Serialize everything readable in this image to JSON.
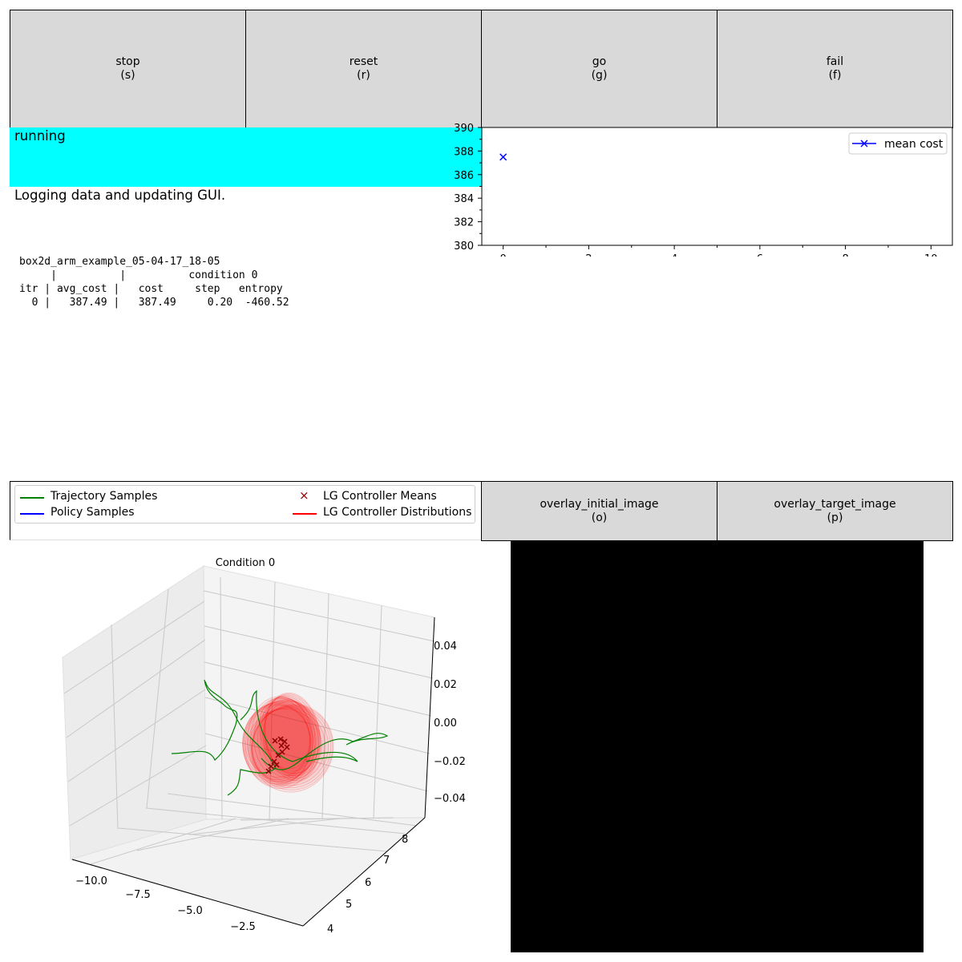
{
  "buttons": [
    {
      "label": "stop",
      "key": "(s)"
    },
    {
      "label": "reset",
      "key": "(r)"
    },
    {
      "label": "go",
      "key": "(g)"
    },
    {
      "label": "fail",
      "key": "(f)"
    }
  ],
  "image_buttons": [
    {
      "label": "overlay_initial_image",
      "key": "(o)"
    },
    {
      "label": "overlay_target_image",
      "key": "(p)"
    }
  ],
  "status": {
    "state": "running",
    "state_color": "#00ffff",
    "message": "Logging data and updating GUI."
  },
  "log": {
    "experiment": "box2d_arm_example_05-04-17_18-05",
    "header_1": "     |          |          condition 0",
    "header_2": "itr | avg_cost |   cost     step   entropy",
    "rows": [
      "  0 |   387.49 |   387.49     0.20  -460.52"
    ]
  },
  "chart_data": [
    {
      "type": "line",
      "series": [
        {
          "name": "mean cost",
          "x": [
            0
          ],
          "y": [
            387.49
          ],
          "color": "#0000ff",
          "marker": "x"
        }
      ],
      "xlim": [
        -0.5,
        10.5
      ],
      "ylim": [
        380,
        390
      ],
      "xticks": [
        0,
        2,
        4,
        6,
        8,
        10
      ],
      "yticks": [
        380,
        382,
        384,
        386,
        388,
        390
      ],
      "legend": "top-right"
    },
    {
      "type": "scatter",
      "title": "Condition 0",
      "legend": [
        {
          "name": "Trajectory Samples",
          "color": "#008000",
          "marker": "line"
        },
        {
          "name": "Policy Samples",
          "color": "#0000ff",
          "marker": "line"
        },
        {
          "name": "LG Controller Means",
          "color": "#8b0000",
          "marker": "x"
        },
        {
          "name": "LG Controller Distributions",
          "color": "#ff0000",
          "marker": "line"
        }
      ],
      "xticks": [
        "−10.0",
        "−7.5",
        "−5.0",
        "−2.5"
      ],
      "yticks": [
        "4",
        "5",
        "6",
        "7",
        "8"
      ],
      "zticks": [
        "0.04",
        "0.02",
        "0.00",
        "−0.02",
        "−0.04"
      ]
    }
  ],
  "image_view": {
    "background": "#000000"
  }
}
